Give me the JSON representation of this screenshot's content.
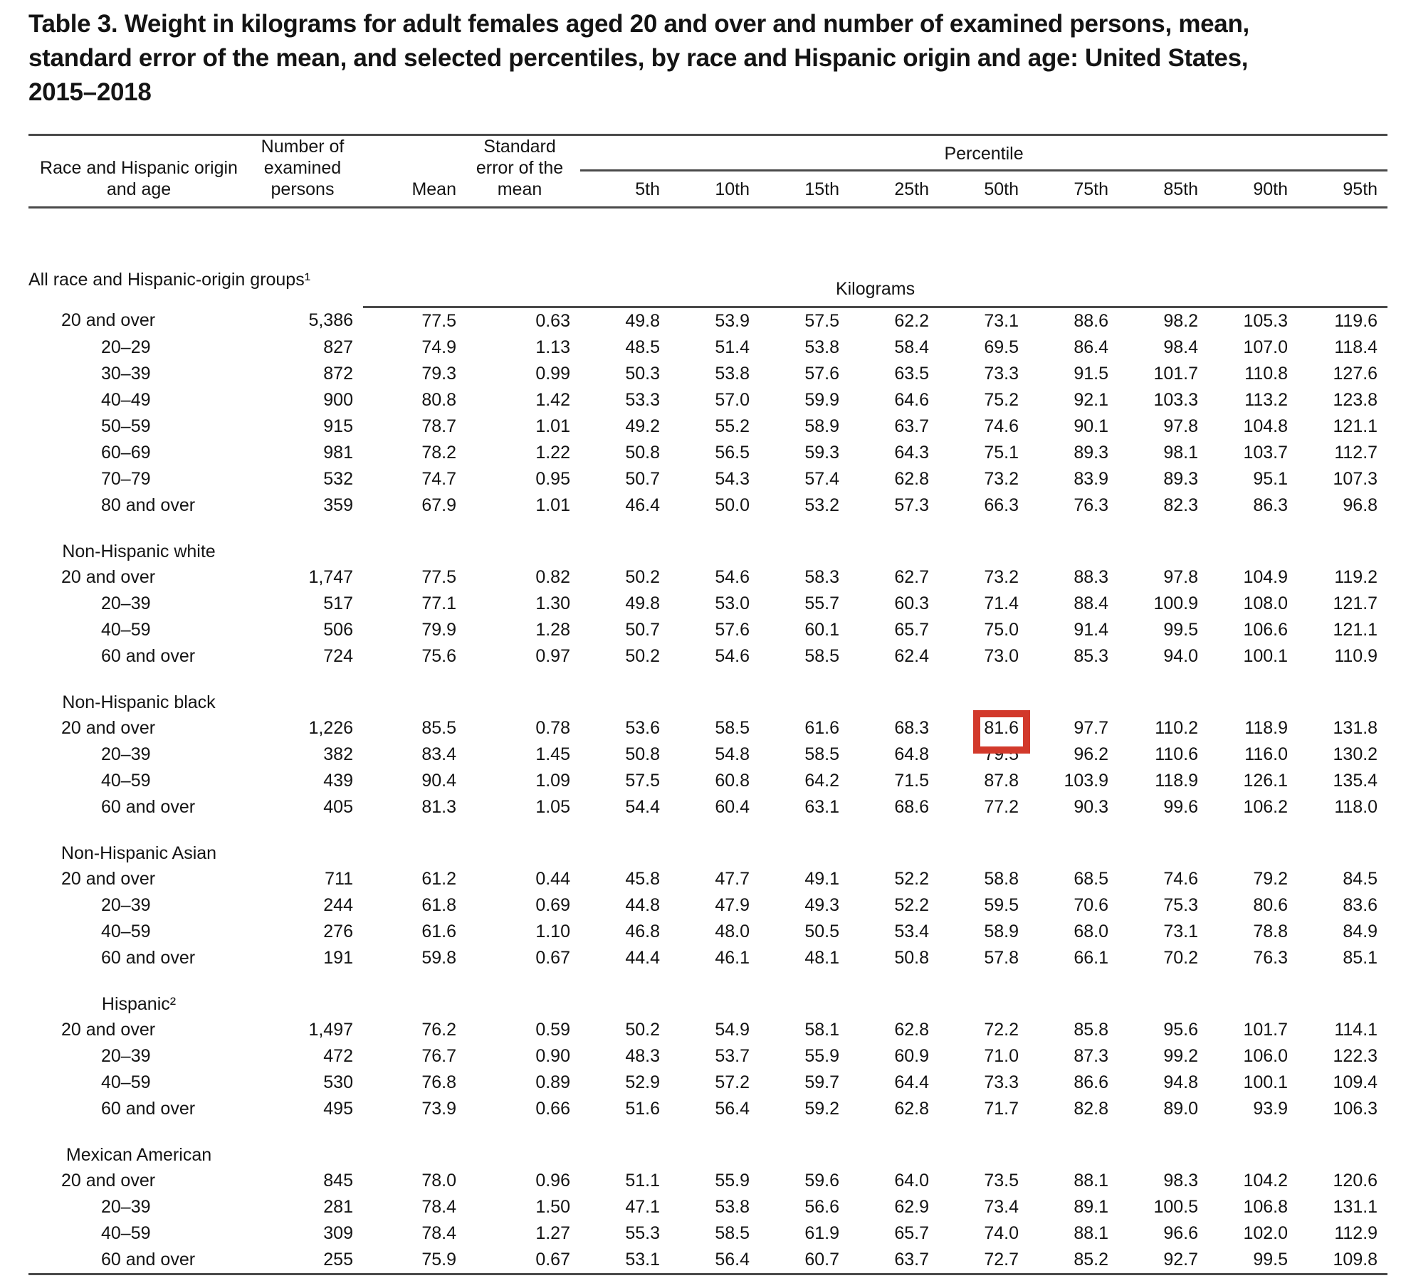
{
  "title": {
    "lines": [
      "Table 3. Weight in kilograms for adult females aged 20 and over and number of examined persons, mean,",
      "standard error of the mean, and selected percentiles, by race and Hispanic origin and age: United States,",
      "2015–2018"
    ]
  },
  "table": {
    "columns": {
      "stub": "Race and Hispanic origin and age",
      "n": "Number of examined persons",
      "mean": "Mean",
      "se": "Standard error of the mean",
      "percentile_group": "Percentile",
      "percentiles": [
        "5th",
        "10th",
        "15th",
        "25th",
        "50th",
        "75th",
        "85th",
        "90th",
        "95th"
      ]
    },
    "unit_label": "Kilograms",
    "highlight": {
      "section_index": 2,
      "row_index": 0,
      "value_index": 7,
      "section": "Non-Hispanic black",
      "row": "20 and over",
      "column": "50th",
      "value": "81.6",
      "color": "#d2392b"
    },
    "sections": [
      {
        "label": "All race and Hispanic-origin groups¹",
        "rows": [
          {
            "label": "20 and over",
            "indent": false,
            "values": [
              "5,386",
              "77.5",
              "0.63",
              "49.8",
              "53.9",
              "57.5",
              "62.2",
              "73.1",
              "88.6",
              "98.2",
              "105.3",
              "119.6"
            ]
          },
          {
            "label": "20–29",
            "indent": true,
            "values": [
              "827",
              "74.9",
              "1.13",
              "48.5",
              "51.4",
              "53.8",
              "58.4",
              "69.5",
              "86.4",
              "98.4",
              "107.0",
              "118.4"
            ]
          },
          {
            "label": "30–39",
            "indent": true,
            "values": [
              "872",
              "79.3",
              "0.99",
              "50.3",
              "53.8",
              "57.6",
              "63.5",
              "73.3",
              "91.5",
              "101.7",
              "110.8",
              "127.6"
            ]
          },
          {
            "label": "40–49",
            "indent": true,
            "values": [
              "900",
              "80.8",
              "1.42",
              "53.3",
              "57.0",
              "59.9",
              "64.6",
              "75.2",
              "92.1",
              "103.3",
              "113.2",
              "123.8"
            ]
          },
          {
            "label": "50–59",
            "indent": true,
            "values": [
              "915",
              "78.7",
              "1.01",
              "49.2",
              "55.2",
              "58.9",
              "63.7",
              "74.6",
              "90.1",
              "97.8",
              "104.8",
              "121.1"
            ]
          },
          {
            "label": "60–69",
            "indent": true,
            "values": [
              "981",
              "78.2",
              "1.22",
              "50.8",
              "56.5",
              "59.3",
              "64.3",
              "75.1",
              "89.3",
              "98.1",
              "103.7",
              "112.7"
            ]
          },
          {
            "label": "70–79",
            "indent": true,
            "values": [
              "532",
              "74.7",
              "0.95",
              "50.7",
              "54.3",
              "57.4",
              "62.8",
              "73.2",
              "83.9",
              "89.3",
              "95.1",
              "107.3"
            ]
          },
          {
            "label": "80 and over",
            "indent": true,
            "values": [
              "359",
              "67.9",
              "1.01",
              "46.4",
              "50.0",
              "53.2",
              "57.3",
              "66.3",
              "76.3",
              "82.3",
              "86.3",
              "96.8"
            ]
          }
        ]
      },
      {
        "label": "Non-Hispanic white",
        "rows": [
          {
            "label": "20 and over",
            "indent": false,
            "values": [
              "1,747",
              "77.5",
              "0.82",
              "50.2",
              "54.6",
              "58.3",
              "62.7",
              "73.2",
              "88.3",
              "97.8",
              "104.9",
              "119.2"
            ]
          },
          {
            "label": "20–39",
            "indent": true,
            "values": [
              "517",
              "77.1",
              "1.30",
              "49.8",
              "53.0",
              "55.7",
              "60.3",
              "71.4",
              "88.4",
              "100.9",
              "108.0",
              "121.7"
            ]
          },
          {
            "label": "40–59",
            "indent": true,
            "values": [
              "506",
              "79.9",
              "1.28",
              "50.7",
              "57.6",
              "60.1",
              "65.7",
              "75.0",
              "91.4",
              "99.5",
              "106.6",
              "121.1"
            ]
          },
          {
            "label": "60 and over",
            "indent": true,
            "values": [
              "724",
              "75.6",
              "0.97",
              "50.2",
              "54.6",
              "58.5",
              "62.4",
              "73.0",
              "85.3",
              "94.0",
              "100.1",
              "110.9"
            ]
          }
        ]
      },
      {
        "label": "Non-Hispanic black",
        "rows": [
          {
            "label": "20 and over",
            "indent": false,
            "values": [
              "1,226",
              "85.5",
              "0.78",
              "53.6",
              "58.5",
              "61.6",
              "68.3",
              "81.6",
              "97.7",
              "110.2",
              "118.9",
              "131.8"
            ]
          },
          {
            "label": "20–39",
            "indent": true,
            "values": [
              "382",
              "83.4",
              "1.45",
              "50.8",
              "54.8",
              "58.5",
              "64.8",
              "79.5",
              "96.2",
              "110.6",
              "116.0",
              "130.2"
            ]
          },
          {
            "label": "40–59",
            "indent": true,
            "values": [
              "439",
              "90.4",
              "1.09",
              "57.5",
              "60.8",
              "64.2",
              "71.5",
              "87.8",
              "103.9",
              "118.9",
              "126.1",
              "135.4"
            ]
          },
          {
            "label": "60 and over",
            "indent": true,
            "values": [
              "405",
              "81.3",
              "1.05",
              "54.4",
              "60.4",
              "63.1",
              "68.6",
              "77.2",
              "90.3",
              "99.6",
              "106.2",
              "118.0"
            ]
          }
        ]
      },
      {
        "label": "Non-Hispanic Asian",
        "rows": [
          {
            "label": "20 and over",
            "indent": false,
            "values": [
              "711",
              "61.2",
              "0.44",
              "45.8",
              "47.7",
              "49.1",
              "52.2",
              "58.8",
              "68.5",
              "74.6",
              "79.2",
              "84.5"
            ]
          },
          {
            "label": "20–39",
            "indent": true,
            "values": [
              "244",
              "61.8",
              "0.69",
              "44.8",
              "47.9",
              "49.3",
              "52.2",
              "59.5",
              "70.6",
              "75.3",
              "80.6",
              "83.6"
            ]
          },
          {
            "label": "40–59",
            "indent": true,
            "values": [
              "276",
              "61.6",
              "1.10",
              "46.8",
              "48.0",
              "50.5",
              "53.4",
              "58.9",
              "68.0",
              "73.1",
              "78.8",
              "84.9"
            ]
          },
          {
            "label": "60 and over",
            "indent": true,
            "values": [
              "191",
              "59.8",
              "0.67",
              "44.4",
              "46.1",
              "48.1",
              "50.8",
              "57.8",
              "66.1",
              "70.2",
              "76.3",
              "85.1"
            ]
          }
        ]
      },
      {
        "label": "Hispanic²",
        "rows": [
          {
            "label": "20 and over",
            "indent": false,
            "values": [
              "1,497",
              "76.2",
              "0.59",
              "50.2",
              "54.9",
              "58.1",
              "62.8",
              "72.2",
              "85.8",
              "95.6",
              "101.7",
              "114.1"
            ]
          },
          {
            "label": "20–39",
            "indent": true,
            "values": [
              "472",
              "76.7",
              "0.90",
              "48.3",
              "53.7",
              "55.9",
              "60.9",
              "71.0",
              "87.3",
              "99.2",
              "106.0",
              "122.3"
            ]
          },
          {
            "label": "40–59",
            "indent": true,
            "values": [
              "530",
              "76.8",
              "0.89",
              "52.9",
              "57.2",
              "59.7",
              "64.4",
              "73.3",
              "86.6",
              "94.8",
              "100.1",
              "109.4"
            ]
          },
          {
            "label": "60 and over",
            "indent": true,
            "values": [
              "495",
              "73.9",
              "0.66",
              "51.6",
              "56.4",
              "59.2",
              "62.8",
              "71.7",
              "82.8",
              "89.0",
              "93.9",
              "106.3"
            ]
          }
        ]
      },
      {
        "label": "Mexican American",
        "rows": [
          {
            "label": "20 and over",
            "indent": false,
            "values": [
              "845",
              "78.0",
              "0.96",
              "51.1",
              "55.9",
              "59.6",
              "64.0",
              "73.5",
              "88.1",
              "98.3",
              "104.2",
              "120.6"
            ]
          },
          {
            "label": "20–39",
            "indent": true,
            "values": [
              "281",
              "78.4",
              "1.50",
              "47.1",
              "53.8",
              "56.6",
              "62.9",
              "73.4",
              "89.1",
              "100.5",
              "106.8",
              "131.1"
            ]
          },
          {
            "label": "40–59",
            "indent": true,
            "values": [
              "309",
              "78.4",
              "1.27",
              "55.3",
              "58.5",
              "61.9",
              "65.7",
              "74.0",
              "88.1",
              "96.6",
              "102.0",
              "112.9"
            ]
          },
          {
            "label": "60 and over",
            "indent": true,
            "values": [
              "255",
              "75.9",
              "0.67",
              "53.1",
              "56.4",
              "60.7",
              "63.7",
              "72.7",
              "85.2",
              "92.7",
              "99.5",
              "109.8"
            ]
          }
        ]
      }
    ]
  }
}
